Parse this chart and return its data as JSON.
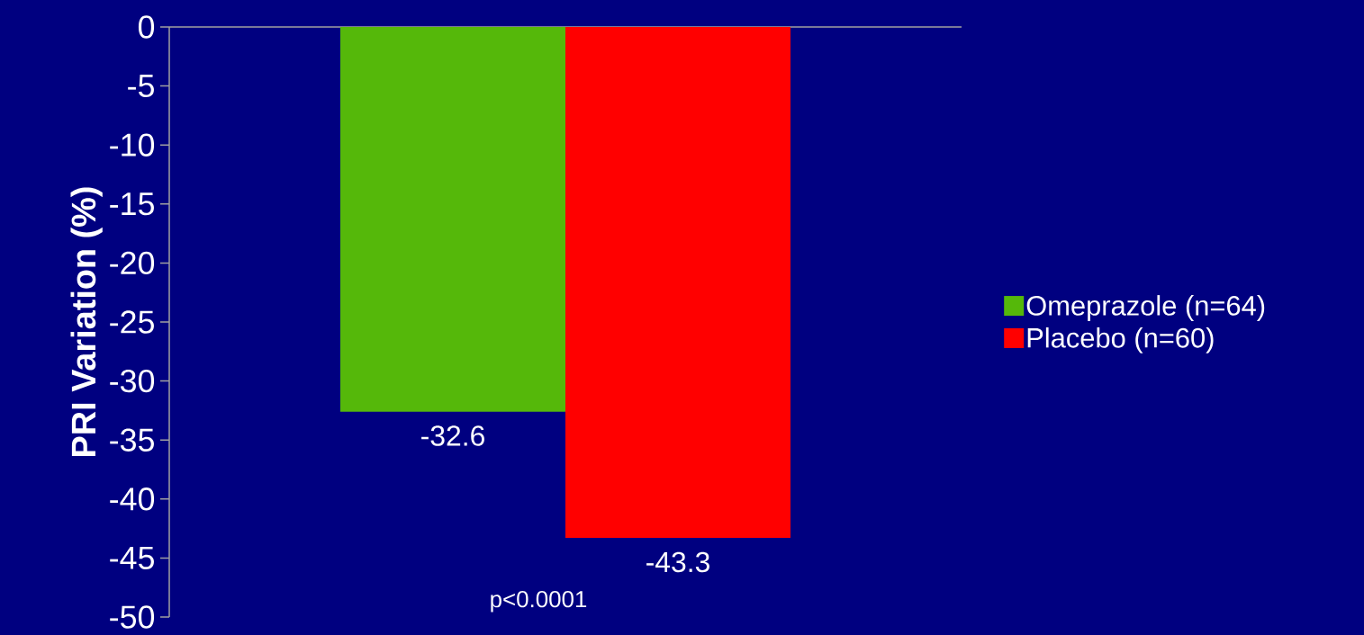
{
  "chart_data": {
    "type": "bar",
    "ylabel": "PRI Variation (%)",
    "categories": [
      null
    ],
    "series": [
      {
        "name": "Omeprazole (n=64)",
        "color": "#55b80a",
        "values": [
          -32.6
        ]
      },
      {
        "name": "Placebo (n=60)",
        "color": "#ff0000",
        "values": [
          -43.3
        ]
      }
    ],
    "ylim": [
      -50,
      0
    ],
    "yticks": [
      -50,
      -45,
      -40,
      -35,
      -30,
      -25,
      -20,
      -15,
      -10,
      -5,
      0
    ],
    "data_labels": true,
    "legend": "right",
    "annotations": [
      "p<0.0001"
    ]
  }
}
